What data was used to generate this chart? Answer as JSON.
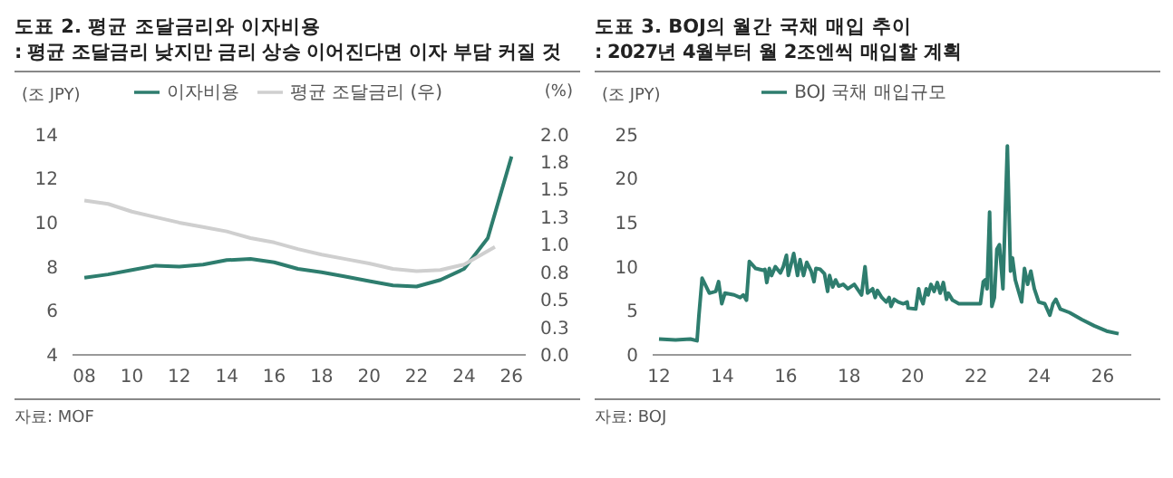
{
  "chart_data": [
    {
      "type": "line",
      "title": "도표 2. 평균 조달금리와 이자비용",
      "subtitle": ": 평균 조달금리 낮지만 금리 상승 이어진다면 이자 부담 커질 것",
      "ylabel": "(조 JPY)",
      "y2label": "(%)",
      "annotations": [
        "자료: MOF"
      ],
      "x": [
        2008,
        2009,
        2010,
        2011,
        2012,
        2013,
        2014,
        2015,
        2016,
        2017,
        2018,
        2019,
        2020,
        2021,
        2022,
        2023,
        2024,
        2025,
        2026
      ],
      "series": [
        {
          "name": "이자비용",
          "color": "#2e7d6e",
          "values": [
            7.5,
            7.65,
            7.85,
            8.05,
            8.0,
            8.1,
            8.3,
            8.35,
            8.2,
            7.9,
            7.75,
            7.55,
            7.35,
            7.15,
            7.1,
            7.4,
            7.9,
            9.3,
            13.0
          ]
        },
        {
          "name": "평균 조달금리 (우)",
          "color": "#cfcfcf",
          "axis": "y2",
          "x": [
            2008,
            2009,
            2010,
            2011,
            2012,
            2013,
            2014,
            2015,
            2016,
            2017,
            2018,
            2019,
            2020,
            2021,
            2022,
            2023,
            2024,
            2025.3
          ],
          "values": [
            1.4,
            1.37,
            1.3,
            1.25,
            1.2,
            1.16,
            1.12,
            1.06,
            1.02,
            0.96,
            0.91,
            0.87,
            0.83,
            0.78,
            0.76,
            0.77,
            0.82,
            0.98
          ]
        }
      ],
      "xlim": [
        2007.5,
        2026.6
      ],
      "xticks": [
        {
          "value": 2008,
          "label": "08"
        },
        {
          "value": 2010,
          "label": "10"
        },
        {
          "value": 2012,
          "label": "12"
        },
        {
          "value": 2014,
          "label": "14"
        },
        {
          "value": 2016,
          "label": "16"
        },
        {
          "value": 2018,
          "label": "18"
        },
        {
          "value": 2020,
          "label": "20"
        },
        {
          "value": 2022,
          "label": "22"
        },
        {
          "value": 2024,
          "label": "24"
        },
        {
          "value": 2026,
          "label": "26"
        }
      ],
      "ylim": [
        4,
        14
      ],
      "yticks": [
        4,
        6,
        8,
        10,
        12,
        14
      ],
      "y2lim": [
        0,
        2
      ],
      "y2ticks": [
        {
          "value": 0,
          "label": "0.0"
        },
        {
          "value": 0.25,
          "label": "0.3"
        },
        {
          "value": 0.5,
          "label": "0.5"
        },
        {
          "value": 0.75,
          "label": "0.8"
        },
        {
          "value": 1,
          "label": "1.0"
        },
        {
          "value": 1.25,
          "label": "1.3"
        },
        {
          "value": 1.5,
          "label": "1.5"
        },
        {
          "value": 1.75,
          "label": "1.8"
        },
        {
          "value": 2,
          "label": "2.0"
        }
      ],
      "legend": "top",
      "grid": false
    },
    {
      "type": "line",
      "title": "도표 3. BOJ의 월간 국채 매입 추이",
      "subtitle": ": 2027년 4월부터 월 2조엔씩 매입할 계획",
      "ylabel": "(조 JPY)",
      "annotations": [
        "자료: BOJ"
      ],
      "x": [
        2012.0,
        2012.52,
        2012.99,
        2013.2,
        2013.26,
        2013.36,
        2013.59,
        2013.79,
        2013.88,
        2013.98,
        2014.08,
        2014.37,
        2014.56,
        2014.66,
        2014.76,
        2014.85,
        2015.05,
        2015.28,
        2015.34,
        2015.4,
        2015.48,
        2015.55,
        2015.67,
        2015.83,
        2015.92,
        2016.02,
        2016.08,
        2016.25,
        2016.37,
        2016.45,
        2016.56,
        2016.66,
        2016.8,
        2016.89,
        2016.95,
        2017.09,
        2017.22,
        2017.32,
        2017.38,
        2017.48,
        2017.57,
        2017.67,
        2017.81,
        2017.96,
        2018.16,
        2018.39,
        2018.5,
        2018.58,
        2018.74,
        2018.82,
        2018.89,
        2019.03,
        2019.17,
        2019.26,
        2019.32,
        2019.42,
        2019.55,
        2019.71,
        2019.83,
        2019.86,
        2020.1,
        2020.19,
        2020.25,
        2020.33,
        2020.43,
        2020.49,
        2020.58,
        2020.68,
        2020.78,
        2020.87,
        2020.97,
        2021.07,
        2021.13,
        2021.26,
        2021.46,
        2022.14,
        2022.23,
        2022.29,
        2022.35,
        2022.43,
        2022.5,
        2022.58,
        2022.66,
        2022.74,
        2022.85,
        2022.99,
        2023.09,
        2023.15,
        2023.24,
        2023.44,
        2023.53,
        2023.63,
        2023.73,
        2023.84,
        2023.98,
        2024.17,
        2024.33,
        2024.43,
        2024.52,
        2024.66,
        2024.95,
        2025.34,
        2025.73,
        2026.12,
        2026.5
      ],
      "series": [
        {
          "name": "BOJ 국채 매입규모",
          "color": "#2e7d6e",
          "values": [
            1.8,
            1.7,
            1.8,
            1.6,
            4.5,
            8.7,
            7.0,
            7.2,
            8.3,
            5.8,
            7.0,
            6.8,
            6.5,
            6.8,
            6.2,
            10.6,
            9.8,
            9.6,
            9.7,
            8.2,
            9.8,
            9.0,
            10.0,
            9.3,
            10.0,
            11.3,
            9.0,
            11.5,
            9.0,
            10.8,
            9.0,
            10.5,
            9.5,
            8.3,
            9.8,
            9.7,
            9.2,
            7.2,
            9.0,
            7.7,
            8.5,
            7.8,
            8.0,
            7.5,
            8.0,
            6.8,
            10.0,
            7.0,
            7.5,
            6.5,
            7.3,
            6.5,
            6.0,
            6.5,
            5.5,
            6.3,
            6.0,
            5.8,
            6.0,
            5.3,
            5.2,
            7.5,
            6.5,
            5.8,
            7.5,
            6.8,
            8.0,
            7.2,
            8.2,
            7.0,
            8.2,
            6.3,
            7.0,
            6.2,
            5.8,
            5.8,
            8.3,
            8.5,
            7.5,
            16.2,
            5.5,
            6.5,
            12.0,
            12.5,
            7.5,
            23.7,
            9.5,
            11.0,
            8.5,
            6.0,
            9.8,
            8.0,
            9.5,
            7.5,
            6.0,
            5.8,
            4.5,
            5.8,
            6.3,
            5.2,
            4.8,
            4.0,
            3.3,
            2.7,
            2.4
          ]
        }
      ],
      "xlim": [
        2011.8,
        2026.9
      ],
      "xticks": [
        {
          "value": 2012,
          "label": "12"
        },
        {
          "value": 2014,
          "label": "14"
        },
        {
          "value": 2016,
          "label": "16"
        },
        {
          "value": 2018,
          "label": "18"
        },
        {
          "value": 2020,
          "label": "20"
        },
        {
          "value": 2022,
          "label": "22"
        },
        {
          "value": 2024,
          "label": "24"
        },
        {
          "value": 2026,
          "label": "26"
        }
      ],
      "ylim": [
        0,
        25
      ],
      "yticks": [
        0,
        5,
        10,
        15,
        20,
        25
      ],
      "legend": "top",
      "grid": false
    }
  ]
}
